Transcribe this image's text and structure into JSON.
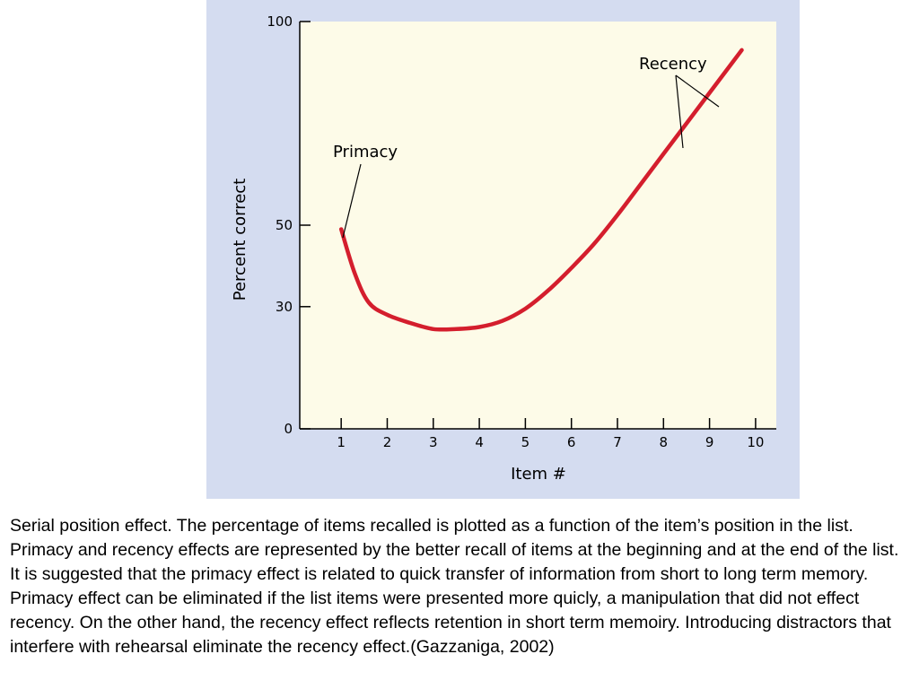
{
  "colors": {
    "panel_bg": "#d4dcf0",
    "plot_bg": "#fdfbe8",
    "curve": "#d41e2d",
    "axis": "#000000"
  },
  "chart_data": {
    "type": "line",
    "xlabel": "Item #",
    "ylabel": "Percent correct",
    "xlim": [
      0.1,
      10.45
    ],
    "ylim": [
      0,
      100
    ],
    "x_ticks": [
      "1",
      "2",
      "3",
      "4",
      "5",
      "6",
      "7",
      "8",
      "9",
      "10"
    ],
    "y_ticks": [
      "0",
      "30",
      "50",
      "100"
    ],
    "grid": false,
    "series": [
      {
        "x": [
          1,
          1.3,
          1.6,
          2,
          2.5,
          3,
          3.5,
          4,
          4.5,
          5,
          5.5,
          6,
          6.5,
          7,
          7.5,
          8,
          8.5,
          9,
          9.5,
          9.7
        ],
        "y": [
          49,
          38,
          31,
          28,
          26,
          24.5,
          24.5,
          25,
          26.5,
          29.5,
          34,
          39.5,
          45.5,
          52.5,
          60,
          67.5,
          75,
          82.5,
          90,
          93
        ]
      }
    ],
    "annotations": [
      {
        "text": "Primacy"
      },
      {
        "text": "Recency"
      }
    ]
  },
  "caption": "Serial position effect. The percentage of items recalled is plotted as a function of the item’s position in the list. Primacy and recency effects are represented by the better recall of items at the beginning and at the end of the list. It is suggested that the primacy effect is related to quick transfer of information from short to long term memory. Primacy effect can be eliminated if the list items were presented more quicly, a manipulation that did not effect recency. On the other hand, the recency effect reflects retention in short term memoiry. Introducing distractors that interfere with rehearsal eliminate  the recency effect.(Gazzaniga, 2002)"
}
